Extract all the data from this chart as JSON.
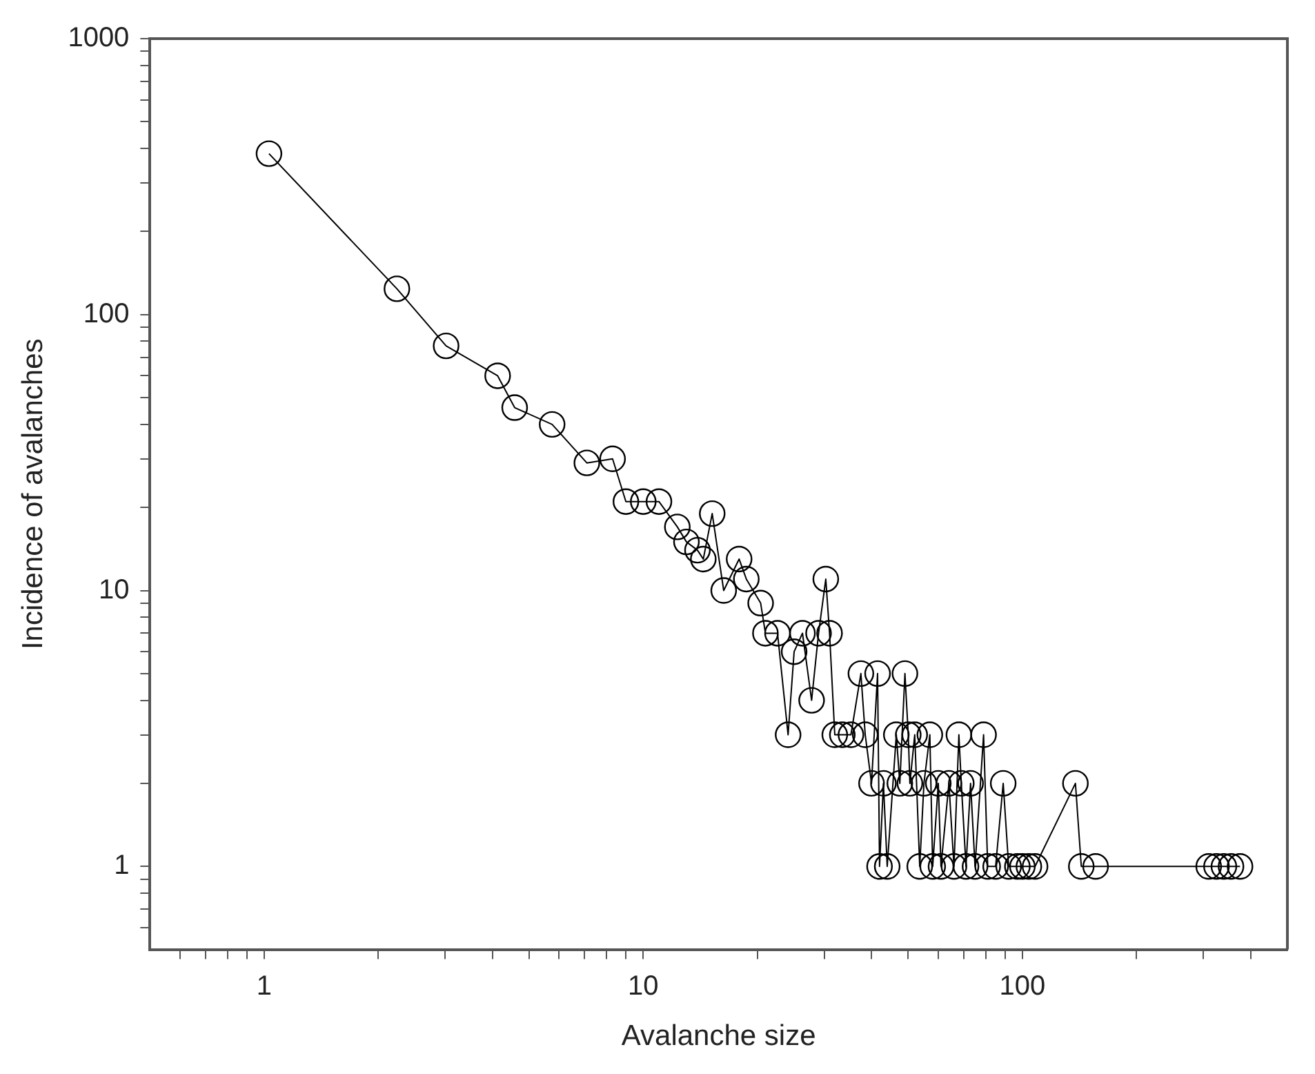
{
  "chart_data": {
    "type": "line",
    "xlabel": "Avalanche size",
    "ylabel": "Incidence of avalanches",
    "log": "xy",
    "grid": false,
    "marker": "circle",
    "line_style": "solid",
    "legend": false,
    "xlim": [
      0.5,
      500
    ],
    "ylim": [
      0.5,
      1000
    ],
    "xticks": [
      {
        "value": 0.6,
        "label": null
      },
      {
        "value": 0.7,
        "label": null
      },
      {
        "value": 0.8,
        "label": null
      },
      {
        "value": 0.9,
        "label": null
      },
      1,
      {
        "value": 2,
        "label": null
      },
      {
        "value": 3,
        "label": null
      },
      {
        "value": 4,
        "label": null
      },
      {
        "value": 5,
        "label": null
      },
      {
        "value": 6,
        "label": null
      },
      {
        "value": 7,
        "label": null
      },
      {
        "value": 8,
        "label": null
      },
      {
        "value": 9,
        "label": null
      },
      10,
      {
        "value": 20,
        "label": null
      },
      {
        "value": 30,
        "label": null
      },
      {
        "value": 40,
        "label": null
      },
      {
        "value": 50,
        "label": null
      },
      {
        "value": 60,
        "label": null
      },
      {
        "value": 70,
        "label": null
      },
      {
        "value": 80,
        "label": null
      },
      {
        "value": 90,
        "label": null
      },
      100,
      {
        "value": 200,
        "label": null
      },
      {
        "value": 300,
        "label": null
      },
      {
        "value": 400,
        "label": null
      }
    ],
    "yticks": [
      {
        "value": 0.6,
        "label": null
      },
      {
        "value": 0.7,
        "label": null
      },
      {
        "value": 0.8,
        "label": null
      },
      {
        "value": 0.9,
        "label": null
      },
      1,
      {
        "value": 2,
        "label": null
      },
      {
        "value": 3,
        "label": null
      },
      {
        "value": 4,
        "label": null
      },
      {
        "value": 5,
        "label": null
      },
      {
        "value": 6,
        "label": null
      },
      {
        "value": 7,
        "label": null
      },
      {
        "value": 8,
        "label": null
      },
      {
        "value": 9,
        "label": null
      },
      10,
      {
        "value": 20,
        "label": null
      },
      {
        "value": 30,
        "label": null
      },
      {
        "value": 40,
        "label": null
      },
      {
        "value": 50,
        "label": null
      },
      {
        "value": 60,
        "label": null
      },
      {
        "value": 70,
        "label": null
      },
      {
        "value": 80,
        "label": null
      },
      {
        "value": 90,
        "label": null
      },
      100,
      {
        "value": 200,
        "label": null
      },
      {
        "value": 300,
        "label": null
      },
      {
        "value": 400,
        "label": null
      },
      {
        "value": 500,
        "label": null
      },
      {
        "value": 600,
        "label": null
      },
      {
        "value": 700,
        "label": null
      },
      {
        "value": 800,
        "label": null
      },
      {
        "value": 900,
        "label": null
      },
      1000
    ],
    "x": [
      1.03,
      2.24,
      3.02,
      4.13,
      4.58,
      5.75,
      7.1,
      8.3,
      9,
      10,
      11,
      12.3,
      13,
      13.9,
      14.4,
      15.2,
      16.3,
      17.9,
      18.7,
      20.4,
      21,
      22.6,
      24.1,
      25,
      26.3,
      27.8,
      29,
      30.3,
      31,
      32,
      33.5,
      35.3,
      37.5,
      38.5,
      40,
      41.5,
      42,
      43,
      44,
      46.5,
      47.5,
      49,
      50,
      50.5,
      52,
      53.6,
      55,
      57,
      58,
      60,
      61,
      64,
      66,
      68,
      69,
      71,
      73,
      75,
      79,
      81,
      85,
      89,
      92,
      97,
      100,
      104,
      108,
      138,
      143,
      156,
      310,
      325,
      340,
      355,
      375
    ],
    "series": [
      {
        "color": "#000000",
        "values": [
          383,
          124,
          77,
          60,
          46,
          40,
          29,
          30,
          21,
          21,
          21,
          17,
          15,
          14,
          13,
          19,
          10,
          13,
          11,
          9,
          7,
          7,
          3,
          6,
          7,
          4,
          7,
          11,
          7,
          3,
          3,
          3,
          5,
          3,
          2,
          5,
          1,
          2,
          1,
          3,
          2,
          5,
          3,
          2,
          3,
          1,
          2,
          3,
          1,
          2,
          1,
          2,
          1,
          3,
          2,
          1,
          2,
          1,
          3,
          1,
          1,
          2,
          1,
          1,
          1,
          1,
          1,
          2,
          1,
          1,
          1,
          1,
          1,
          1,
          1
        ]
      }
    ]
  }
}
